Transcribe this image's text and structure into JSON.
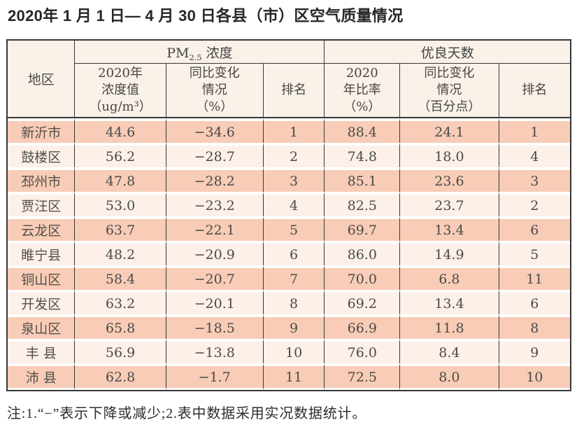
{
  "title": "2020年 1 月 1 日— 4 月 30 日各县（市）区空气质量情况",
  "table": {
    "header": {
      "region": "地区",
      "pm_group": {
        "pre": "PM",
        "sub": "2.5",
        "post": " 浓度"
      },
      "days_group": "优良天数",
      "pm_value": "2020年\n浓度值\n（ug/m³）",
      "pm_change": "同比变化\n情况\n（%）",
      "pm_rank": "排名",
      "days_rate": "2020\n年比率\n（%）",
      "days_change": "同比变化\n情况\n（百分点）",
      "days_rank": "排名"
    },
    "rows": [
      {
        "region": "新沂市",
        "pm_value": "44.6",
        "pm_change": "−34.6",
        "pm_rank": "1",
        "days_rate": "88.4",
        "days_change": "24.1",
        "days_rank": "1"
      },
      {
        "region": "鼓楼区",
        "pm_value": "56.2",
        "pm_change": "−28.7",
        "pm_rank": "2",
        "days_rate": "74.8",
        "days_change": "18.0",
        "days_rank": "4"
      },
      {
        "region": "邳州市",
        "pm_value": "47.8",
        "pm_change": "−28.2",
        "pm_rank": "3",
        "days_rate": "85.1",
        "days_change": "23.6",
        "days_rank": "3"
      },
      {
        "region": "贾汪区",
        "pm_value": "53.0",
        "pm_change": "−23.2",
        "pm_rank": "4",
        "days_rate": "82.5",
        "days_change": "23.7",
        "days_rank": "2"
      },
      {
        "region": "云龙区",
        "pm_value": "63.7",
        "pm_change": "−22.1",
        "pm_rank": "5",
        "days_rate": "69.7",
        "days_change": "13.4",
        "days_rank": "6"
      },
      {
        "region": "睢宁县",
        "pm_value": "48.2",
        "pm_change": "−20.9",
        "pm_rank": "6",
        "days_rate": "86.0",
        "days_change": "14.9",
        "days_rank": "5"
      },
      {
        "region": "铜山区",
        "pm_value": "58.4",
        "pm_change": "−20.7",
        "pm_rank": "7",
        "days_rate": "70.0",
        "days_change": "6.8",
        "days_rank": "11"
      },
      {
        "region": "开发区",
        "pm_value": "63.2",
        "pm_change": "−20.1",
        "pm_rank": "8",
        "days_rate": "69.2",
        "days_change": "13.4",
        "days_rank": "6"
      },
      {
        "region": "泉山区",
        "pm_value": "65.8",
        "pm_change": "−18.5",
        "pm_rank": "9",
        "days_rate": "66.9",
        "days_change": "11.8",
        "days_rank": "8"
      },
      {
        "region": "丰 县",
        "pm_value": "56.9",
        "pm_change": "−13.8",
        "pm_rank": "10",
        "days_rate": "76.0",
        "days_change": "8.4",
        "days_rank": "9"
      },
      {
        "region": "沛 县",
        "pm_value": "62.8",
        "pm_change": "−1.7",
        "pm_rank": "11",
        "days_rate": "72.5",
        "days_change": "8.0",
        "days_rank": "10"
      }
    ]
  },
  "note": "注:1.“−”表示下降或减少;2.表中数据采用实况数据统计。",
  "colors": {
    "border": "#383838",
    "header_bg": "#faf1e9",
    "row_odd_bg": "#f8ccb6",
    "row_even_bg": "#fcf0e8",
    "text": "#4a4a4a"
  }
}
